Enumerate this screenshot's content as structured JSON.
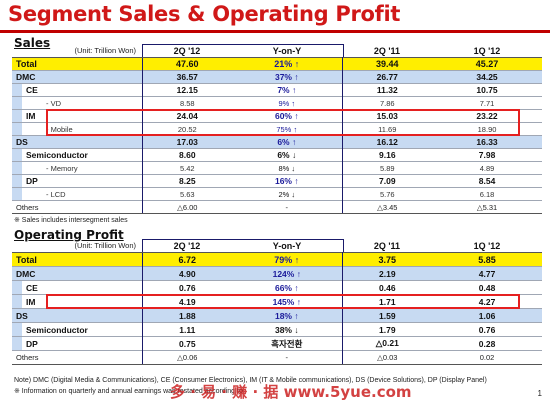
{
  "title": "Segment Sales & Operating Profit",
  "columns": [
    "2Q '12",
    "Y-on-Y",
    "2Q '11",
    "1Q '12"
  ],
  "sales": {
    "heading": "Sales",
    "unit": "(Unit: Trillion Won)",
    "rows": [
      {
        "label": "Total",
        "v1": "47.60",
        "yoy": "21% ↑",
        "v2": "39.44",
        "v3": "45.27",
        "kind": "total"
      },
      {
        "label": "DMC",
        "v1": "36.57",
        "yoy": "37% ↑",
        "v2": "26.77",
        "v3": "34.25",
        "kind": "seg"
      },
      {
        "label": "CE",
        "v1": "12.15",
        "yoy": "7% ↑",
        "v2": "11.32",
        "v3": "10.75",
        "kind": "sub"
      },
      {
        "label": "- VD",
        "v1": "8.58",
        "yoy": "9% ↑",
        "v2": "7.86",
        "v3": "7.71",
        "kind": "sub2"
      },
      {
        "label": "IM",
        "v1": "24.04",
        "yoy": "60% ↑",
        "v2": "15.03",
        "v3": "23.22",
        "kind": "sub"
      },
      {
        "label": "- Mobile",
        "v1": "20.52",
        "yoy": "75% ↑",
        "v2": "11.69",
        "v3": "18.90",
        "kind": "sub2"
      },
      {
        "label": "DS",
        "v1": "17.03",
        "yoy": "6% ↑",
        "v2": "16.12",
        "v3": "16.33",
        "kind": "seg"
      },
      {
        "label": "Semiconductor",
        "v1": "8.60",
        "yoy": "6% ↓",
        "v2": "9.16",
        "v3": "7.98",
        "kind": "sub"
      },
      {
        "label": "- Memory",
        "v1": "5.42",
        "yoy": "8% ↓",
        "v2": "5.89",
        "v3": "4.89",
        "kind": "sub2"
      },
      {
        "label": "DP",
        "v1": "8.25",
        "yoy": "16% ↑",
        "v2": "7.09",
        "v3": "8.54",
        "kind": "sub"
      },
      {
        "label": "- LCD",
        "v1": "5.63",
        "yoy": "2% ↓",
        "v2": "5.76",
        "v3": "6.18",
        "kind": "sub2"
      },
      {
        "label": "Others",
        "v1": "△6.00",
        "yoy": "-",
        "v2": "△3.45",
        "v3": "△5.31",
        "kind": "other"
      }
    ],
    "footnote": "※ Sales includes intersegment sales"
  },
  "profit": {
    "heading": "Operating Profit",
    "unit": "(Unit: Trillion Won)",
    "rows": [
      {
        "label": "Total",
        "v1": "6.72",
        "yoy": "79% ↑",
        "v2": "3.75",
        "v3": "5.85",
        "kind": "total"
      },
      {
        "label": "DMC",
        "v1": "4.90",
        "yoy": "124% ↑",
        "v2": "2.19",
        "v3": "4.77",
        "kind": "seg"
      },
      {
        "label": "CE",
        "v1": "0.76",
        "yoy": "66% ↑",
        "v2": "0.46",
        "v3": "0.48",
        "kind": "sub"
      },
      {
        "label": "IM",
        "v1": "4.19",
        "yoy": "145% ↑",
        "v2": "1.71",
        "v3": "4.27",
        "kind": "sub"
      },
      {
        "label": "DS",
        "v1": "1.88",
        "yoy": "18% ↑",
        "v2": "1.59",
        "v3": "1.06",
        "kind": "seg"
      },
      {
        "label": "Semiconductor",
        "v1": "1.11",
        "yoy": "38% ↓",
        "v2": "1.79",
        "v3": "0.76",
        "kind": "sub"
      },
      {
        "label": "DP",
        "v1": "0.75",
        "yoy": "흑자전환",
        "v2": "△0.21",
        "v3": "0.28",
        "kind": "sub"
      },
      {
        "label": "Others",
        "v1": "△0.06",
        "yoy": "-",
        "v2": "△0.03",
        "v3": "0.02",
        "kind": "other"
      }
    ]
  },
  "notes": [
    "Note) DMC (Digital Media & Communications), CE (Consumer Electronics), IM (IT & Mobile communications), DS (Device Solutions), DP (Display Panel)",
    "※ Information on quarterly and annual earnings was restated according to"
  ],
  "watermark": "多 · 易 · 赚 · 据   www.5yue.com",
  "page_number": "1"
}
